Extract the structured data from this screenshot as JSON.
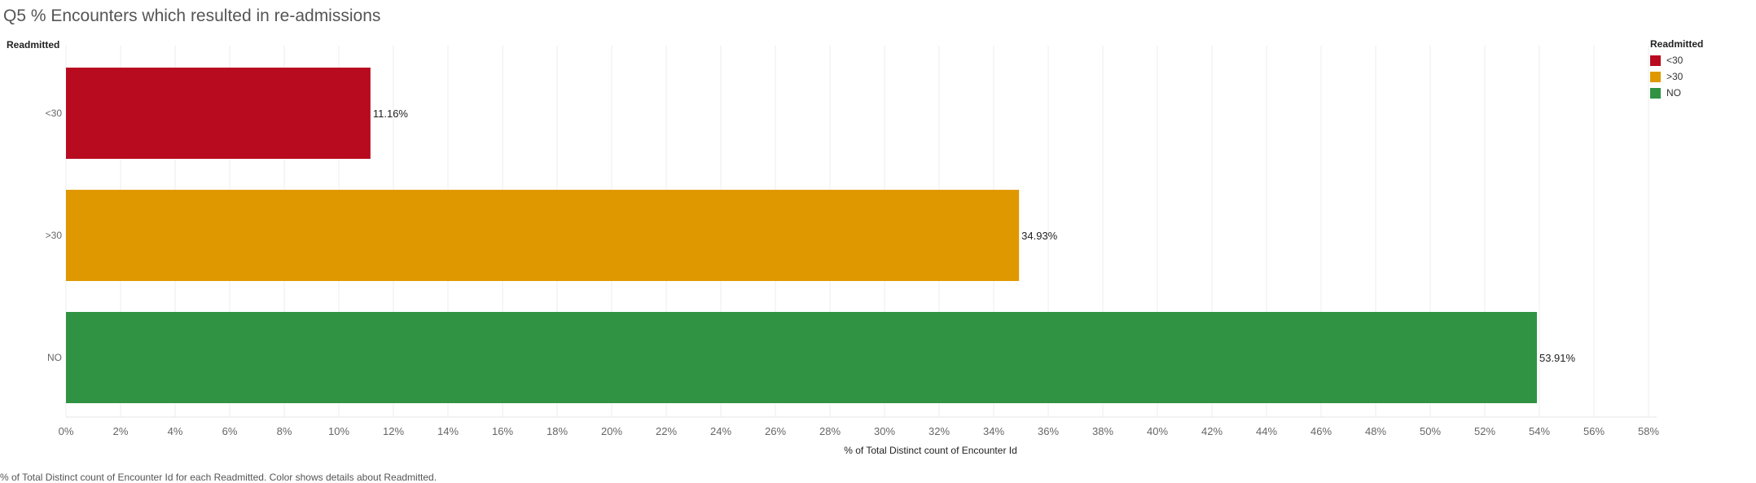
{
  "title": "Q5 % Encounters which resulted in re-admissions",
  "row_header": "Readmitted",
  "legend": {
    "title": "Readmitted",
    "items": [
      {
        "label": "<30",
        "color": "#b80b20"
      },
      {
        "label": ">30",
        "color": "#e09800"
      },
      {
        "label": "NO",
        "color": "#309343"
      }
    ]
  },
  "caption": "% of Total Distinct count of Encounter Id for each Readmitted.  Color shows details about Readmitted.",
  "chart_data": {
    "type": "bar",
    "orientation": "horizontal",
    "categories": [
      "<30",
      ">30",
      "NO"
    ],
    "values": [
      11.16,
      34.93,
      53.91
    ],
    "value_labels": [
      "11.16%",
      "34.93%",
      "53.91%"
    ],
    "colors": [
      "#b80b20",
      "#e09800",
      "#309343"
    ],
    "xlabel": "% of Total Distinct count of Encounter Id",
    "ylabel": "Readmitted",
    "xlim": [
      0,
      58
    ],
    "xticks": [
      "0%",
      "2%",
      "4%",
      "6%",
      "8%",
      "10%",
      "12%",
      "14%",
      "16%",
      "18%",
      "20%",
      "22%",
      "24%",
      "26%",
      "28%",
      "30%",
      "32%",
      "34%",
      "36%",
      "38%",
      "40%",
      "42%",
      "44%",
      "46%",
      "48%",
      "50%",
      "52%",
      "54%",
      "56%",
      "58%"
    ],
    "grid": true
  }
}
